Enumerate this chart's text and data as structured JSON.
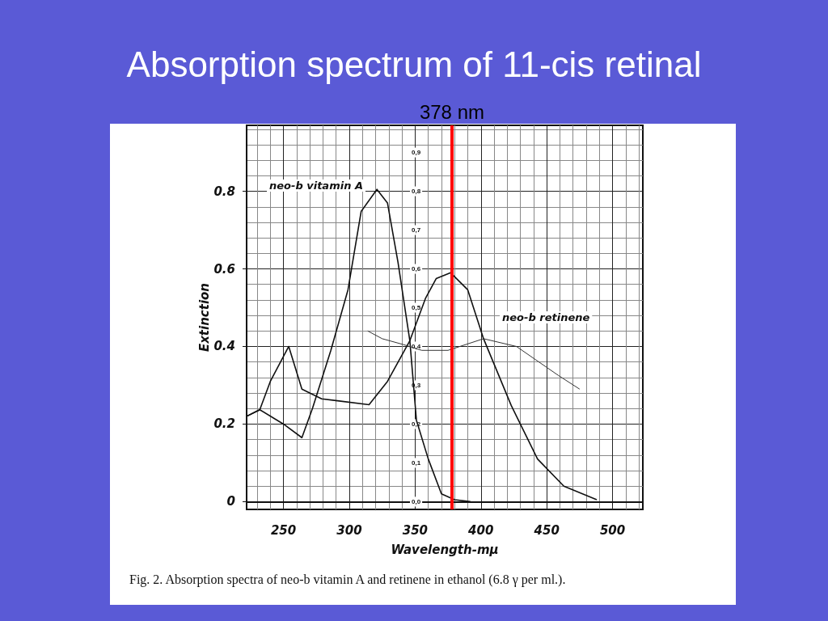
{
  "chart_data": {
    "type": "line",
    "title": "Absorption spectrum of 11-cis retinal",
    "xlabel": "Wavelength-mμ",
    "ylabel": "Extinction",
    "xlim": [
      222,
      523
    ],
    "xticks": [
      250,
      300,
      350,
      400,
      450,
      500
    ],
    "ylim": [
      -0.02,
      0.97
    ],
    "yticks": [
      {
        "value": 0,
        "label": "0"
      },
      0.2,
      0.4,
      0.6,
      0.8
    ],
    "y2lim": [
      -0.02,
      0.97
    ],
    "y2ticks": [
      {
        "value": 0,
        "label": "0,0"
      },
      {
        "value": 0.1,
        "label": "0,1"
      },
      {
        "value": 0.2,
        "label": "0,2"
      },
      {
        "value": 0.3,
        "label": "0,3"
      },
      {
        "value": 0.4,
        "label": "0,4"
      },
      {
        "value": 0.5,
        "label": "0,5"
      },
      {
        "value": 0.6,
        "label": "0,6"
      },
      {
        "value": 0.7,
        "label": "0,7"
      },
      {
        "value": 0.8,
        "label": "0,8"
      },
      {
        "value": 0.9,
        "label": "0,9"
      }
    ],
    "grid": true,
    "legend": false,
    "marker": "none",
    "line_style": "solid",
    "series": [
      {
        "name": "neo-b vitamin A",
        "color": "#111111",
        "x": [
          222,
          232,
          250,
          264,
          272,
          286,
          299,
          309,
          321,
          329,
          337,
          346,
          351,
          360,
          370,
          380,
          392
        ],
        "values": [
          0.22,
          0.237,
          0.2,
          0.165,
          0.24,
          0.39,
          0.546,
          0.748,
          0.805,
          0.77,
          0.617,
          0.415,
          0.21,
          0.11,
          0.02,
          0.005,
          0.0
        ]
      },
      {
        "name": "neo-b retinene",
        "color": "#111111",
        "x": [
          222,
          232,
          240,
          254,
          264,
          279,
          291,
          315,
          329,
          346,
          358,
          366,
          377,
          390,
          402,
          423,
          443,
          463,
          488
        ],
        "values": [
          0.22,
          0.237,
          0.31,
          0.4,
          0.29,
          0.265,
          0.26,
          0.25,
          0.31,
          0.415,
          0.525,
          0.575,
          0.59,
          0.546,
          0.42,
          0.248,
          0.11,
          0.04,
          0.005
        ]
      },
      {
        "color": "#333333",
        "x": [
          314,
          325,
          341,
          355,
          375,
          402,
          427,
          459,
          475
        ],
        "values": [
          0.44,
          0.42,
          0.405,
          0.39,
          0.39,
          0.42,
          0.4,
          0.325,
          0.29
        ]
      }
    ],
    "ref_lines": [
      {
        "axis": "x",
        "value": 378,
        "label": "378 nm",
        "color": "#ff0000"
      }
    ],
    "annotations": [
      "Fig. 2. Absorption spectra of neo-b vitamin A and retinene in ethanol (6.8 γ per ml.)."
    ]
  }
}
